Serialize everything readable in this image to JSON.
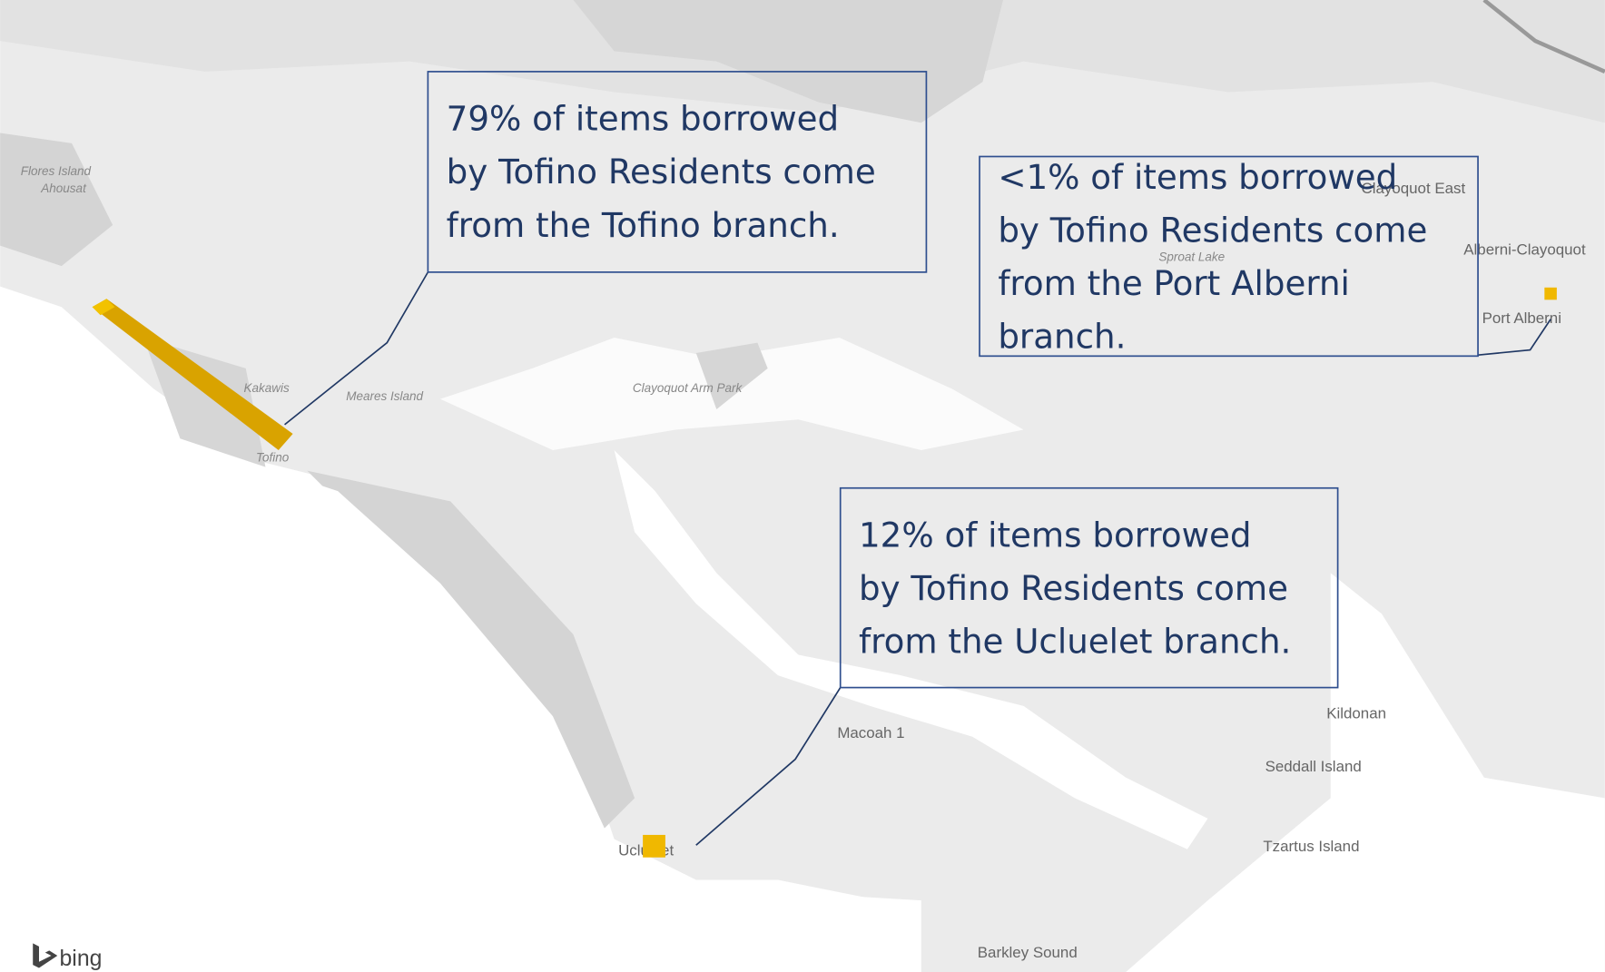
{
  "callouts": [
    {
      "lines": [
        "79% of items borrowed",
        "by Tofino Residents come",
        "from the Tofino branch."
      ]
    },
    {
      "lines": [
        "<1% of items borrowed",
        "by Tofino Residents come",
        "from the Port Alberni",
        "branch."
      ]
    },
    {
      "lines": [
        "12% of items borrowed",
        "by Tofino Residents come",
        "from the Ucluelet branch."
      ]
    }
  ],
  "places": [
    "Flores Island",
    "Ahousat",
    "Kakawis",
    "Meares Island",
    "Tofino",
    "Clayoquot Arm Park",
    "Sproat Lake",
    "Clayoquot East",
    "Alberni-Clayoquot",
    "Port Alberni",
    "Kildonan",
    "Macoah 1",
    "Seddall Island",
    "Tzartus Island",
    "Ucluelet",
    "Barkley Sound"
  ],
  "logo": "bing"
}
